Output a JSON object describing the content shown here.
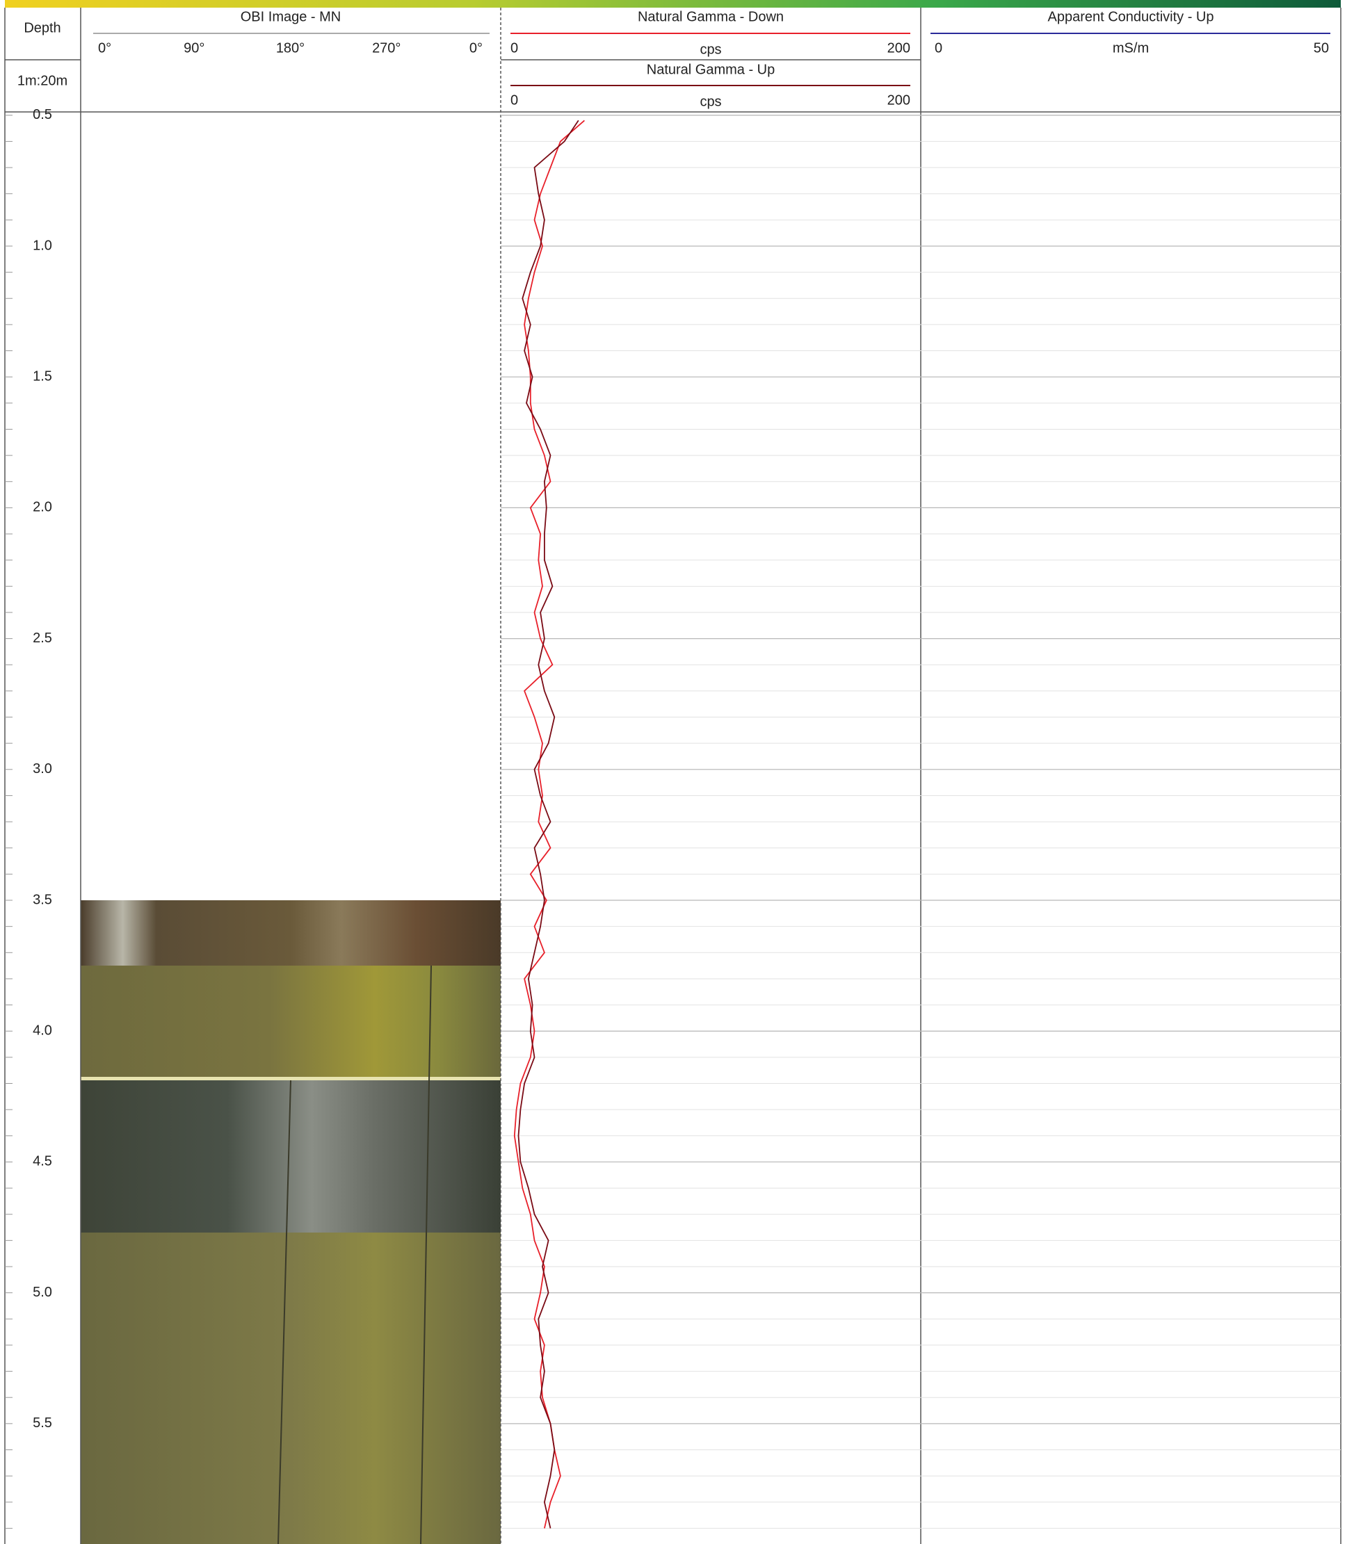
{
  "header": {
    "depth_title": "Depth",
    "scale": "1m:20m",
    "obi": {
      "title": "OBI Image - MN",
      "ticks": [
        "0°",
        "90°",
        "180°",
        "270°",
        "0°"
      ]
    }
  },
  "chart_data": {
    "type": "line",
    "unit": "cps",
    "xlim": [
      0,
      200
    ],
    "ylim": [
      0.49,
      5.96
    ],
    "yticks": [
      0.5,
      {
        "value": 1,
        "label": "1.0"
      },
      1.5,
      {
        "value": 2,
        "label": "2.0"
      },
      2.5,
      {
        "value": 3,
        "label": "3.0"
      },
      3.5,
      {
        "value": 4,
        "label": "4.0"
      },
      4.5,
      {
        "value": 5,
        "label": "5.0"
      },
      5.5
    ],
    "grid": true,
    "depth": [
      0.52,
      0.6,
      0.7,
      0.8,
      0.9,
      1.0,
      1.1,
      1.2,
      1.3,
      1.4,
      1.5,
      1.6,
      1.7,
      1.8,
      1.9,
      2.0,
      2.1,
      2.2,
      2.3,
      2.4,
      2.5,
      2.6,
      2.7,
      2.8,
      2.9,
      3.0,
      3.1,
      3.2,
      3.3,
      3.4,
      3.5,
      3.6,
      3.7,
      3.8,
      3.9,
      4.0,
      4.1,
      4.2,
      4.3,
      4.4,
      4.5,
      4.6,
      4.7,
      4.8,
      4.9,
      5.0,
      5.1,
      5.2,
      5.3,
      5.4,
      5.5,
      5.6,
      5.7,
      5.8,
      5.9
    ],
    "series": [
      {
        "name": "Natural Gamma - Down",
        "color": "#e8202a",
        "values": [
          37,
          25,
          20,
          15,
          12,
          16,
          12,
          9,
          7,
          9,
          10,
          10,
          12,
          17,
          20,
          10,
          15,
          14,
          16,
          12,
          15,
          21,
          7,
          12,
          16,
          14,
          16,
          14,
          20,
          10,
          18,
          12,
          17,
          7,
          10,
          12,
          10,
          5,
          3,
          2,
          4,
          6,
          10,
          12,
          17,
          15,
          12,
          17,
          15,
          16,
          20,
          22,
          25,
          20,
          17
        ]
      },
      {
        "name": "Natural Gamma - Up",
        "color": "#7a0a14",
        "values": [
          34,
          27,
          12,
          14,
          17,
          15,
          10,
          6,
          10,
          7,
          11,
          8,
          15,
          20,
          17,
          18,
          17,
          17,
          21,
          15,
          17,
          14,
          17,
          22,
          19,
          12,
          15,
          20,
          12,
          15,
          17,
          15,
          12,
          9,
          11,
          10,
          12,
          7,
          5,
          4,
          5,
          9,
          12,
          19,
          16,
          19,
          14,
          15,
          17,
          15,
          20,
          22,
          20,
          17,
          20
        ]
      }
    ]
  },
  "conductivity": {
    "title": "Apparent Conductivity - Up",
    "unit": "mS/m",
    "xlim": [
      0,
      50
    ],
    "color": "#2a2a9a"
  }
}
